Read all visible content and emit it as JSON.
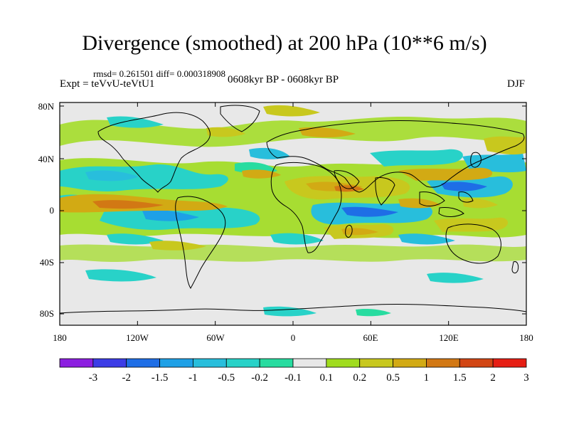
{
  "title": "Divergence (smoothed) at 200 hPa (10**6 m/s)",
  "stats": "rmsd= 0.261501 diff= 0.000318908",
  "experiment": "Expt = teVvU-teVtU1",
  "period": "0608kyr BP - 0608kyr BP",
  "season": "DJF",
  "axes": {
    "x_ticks": [
      "180",
      "120W",
      "60W",
      "0",
      "60E",
      "120E",
      "180"
    ],
    "y_ticks": [
      "80N",
      "40N",
      "0",
      "40S",
      "80S"
    ]
  },
  "colorbar": {
    "labels": [
      "-3",
      "-2",
      "-1.5",
      "-1",
      "-0.5",
      "-0.2",
      "-0.1",
      "0.1",
      "0.2",
      "0.5",
      "1",
      "1.5",
      "2",
      "3"
    ],
    "colors": [
      "#8c1ee0",
      "#3c3ce6",
      "#1e6ee6",
      "#1ea0e6",
      "#28bedc",
      "#28d2c8",
      "#28dca0",
      "#e8e8e8",
      "#a0dc1e",
      "#c8c81e",
      "#d2aa14",
      "#d27814",
      "#d24614",
      "#e61e14"
    ]
  }
}
